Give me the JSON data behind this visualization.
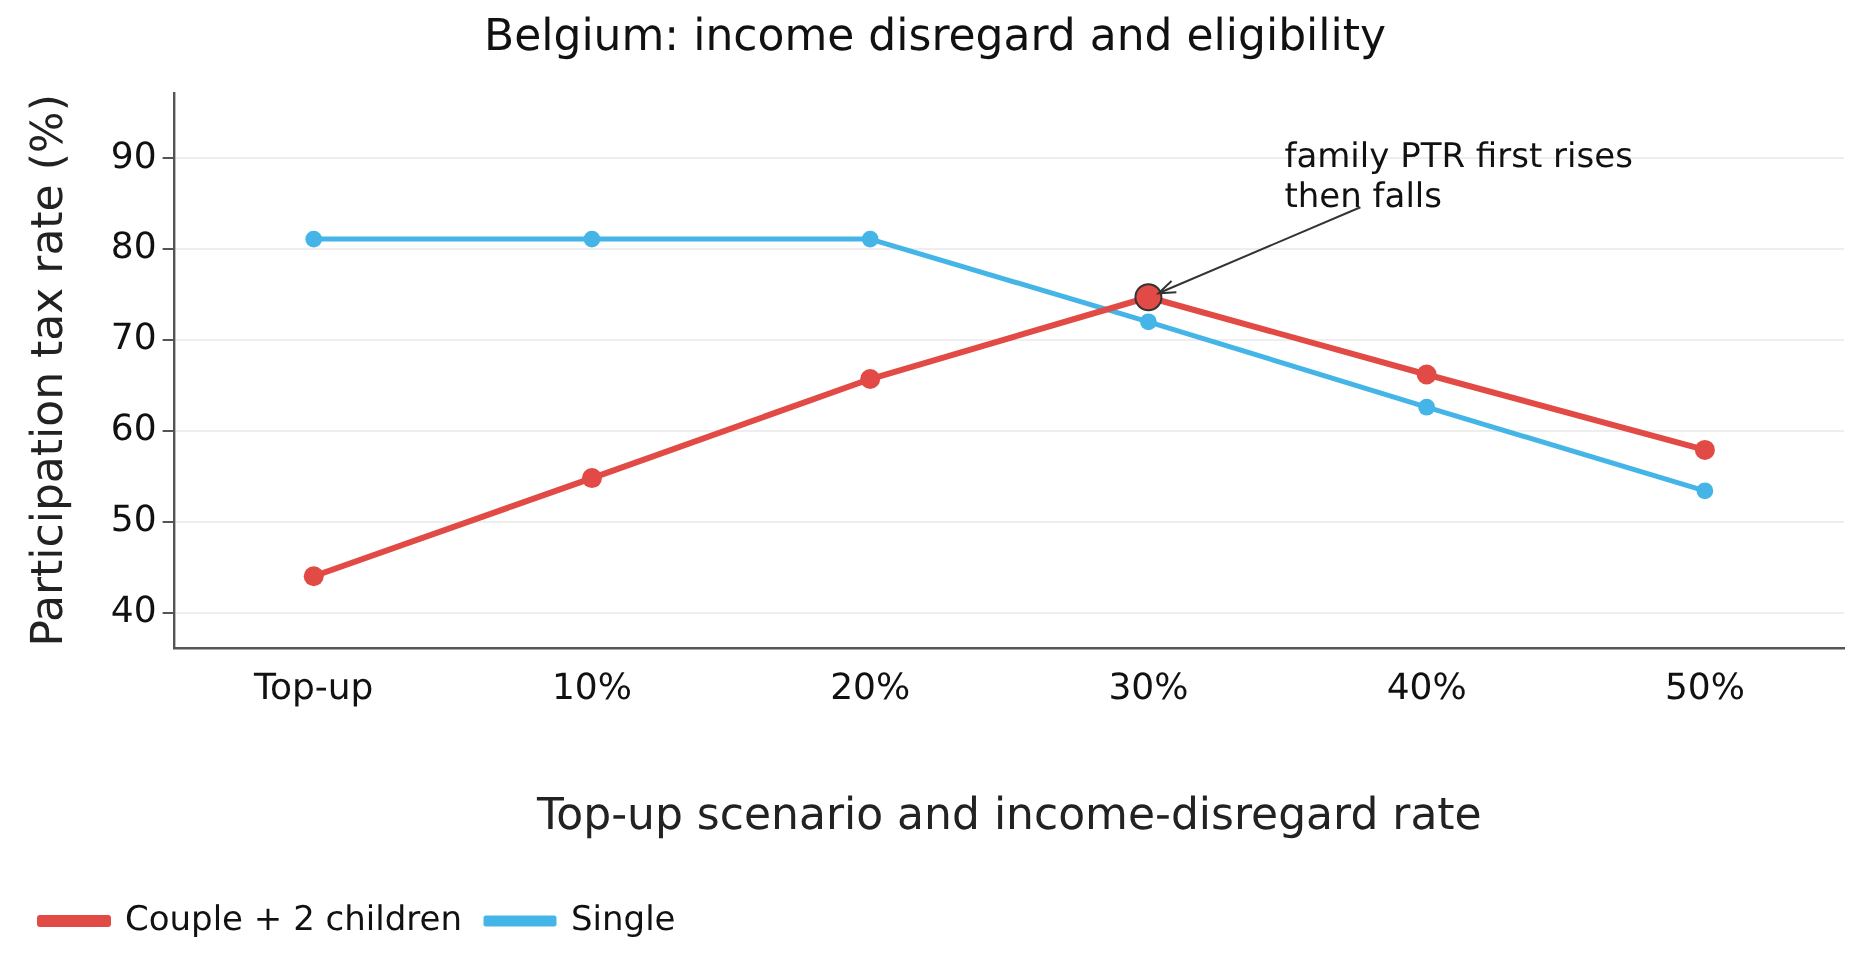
{
  "chart_data": {
    "type": "line",
    "title": "Belgium: income disregard and eligibility",
    "xlabel": "Top-up scenario and income-disregard rate",
    "ylabel": "Participation tax rate (%)",
    "categories": [
      "Top-up",
      "10%",
      "20%",
      "30%",
      "40%",
      "50%"
    ],
    "series": [
      {
        "name": "Couple + 2 children",
        "color": "#e24a46",
        "values": [
          44.0,
          54.8,
          65.7,
          74.7,
          66.2,
          57.9
        ]
      },
      {
        "name": "Single",
        "color": "#45b5e8",
        "values": [
          81.1,
          81.1,
          81.1,
          72.0,
          62.6,
          53.4
        ]
      }
    ],
    "ylim": [
      36.1,
      97.2
    ],
    "yticks": [
      40,
      50,
      60,
      70,
      80,
      90
    ],
    "grid": "y",
    "legend": "bottom left",
    "marker": "circle",
    "line_style": "solid",
    "annotations": [
      {
        "text": "family PTR first rises\nthen falls",
        "x": "30%",
        "y": 74.7
      }
    ]
  }
}
